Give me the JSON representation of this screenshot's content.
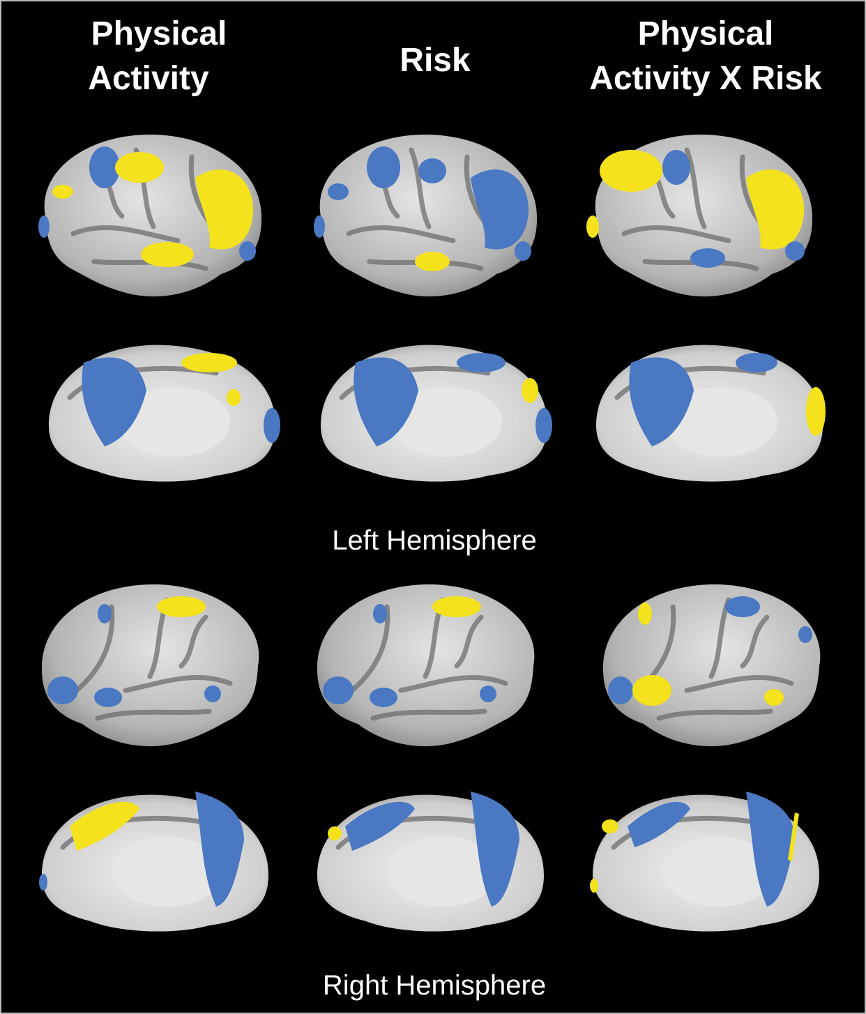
{
  "header": {
    "columns": [
      {
        "lines": [
          "Physical",
          "Activity"
        ]
      },
      {
        "lines": [
          "Risk"
        ]
      },
      {
        "lines": [
          "Physical",
          "Activity X Risk"
        ]
      }
    ]
  },
  "sections": [
    {
      "label": "Left Hemisphere"
    },
    {
      "label": "Right Hemisphere"
    }
  ]
}
